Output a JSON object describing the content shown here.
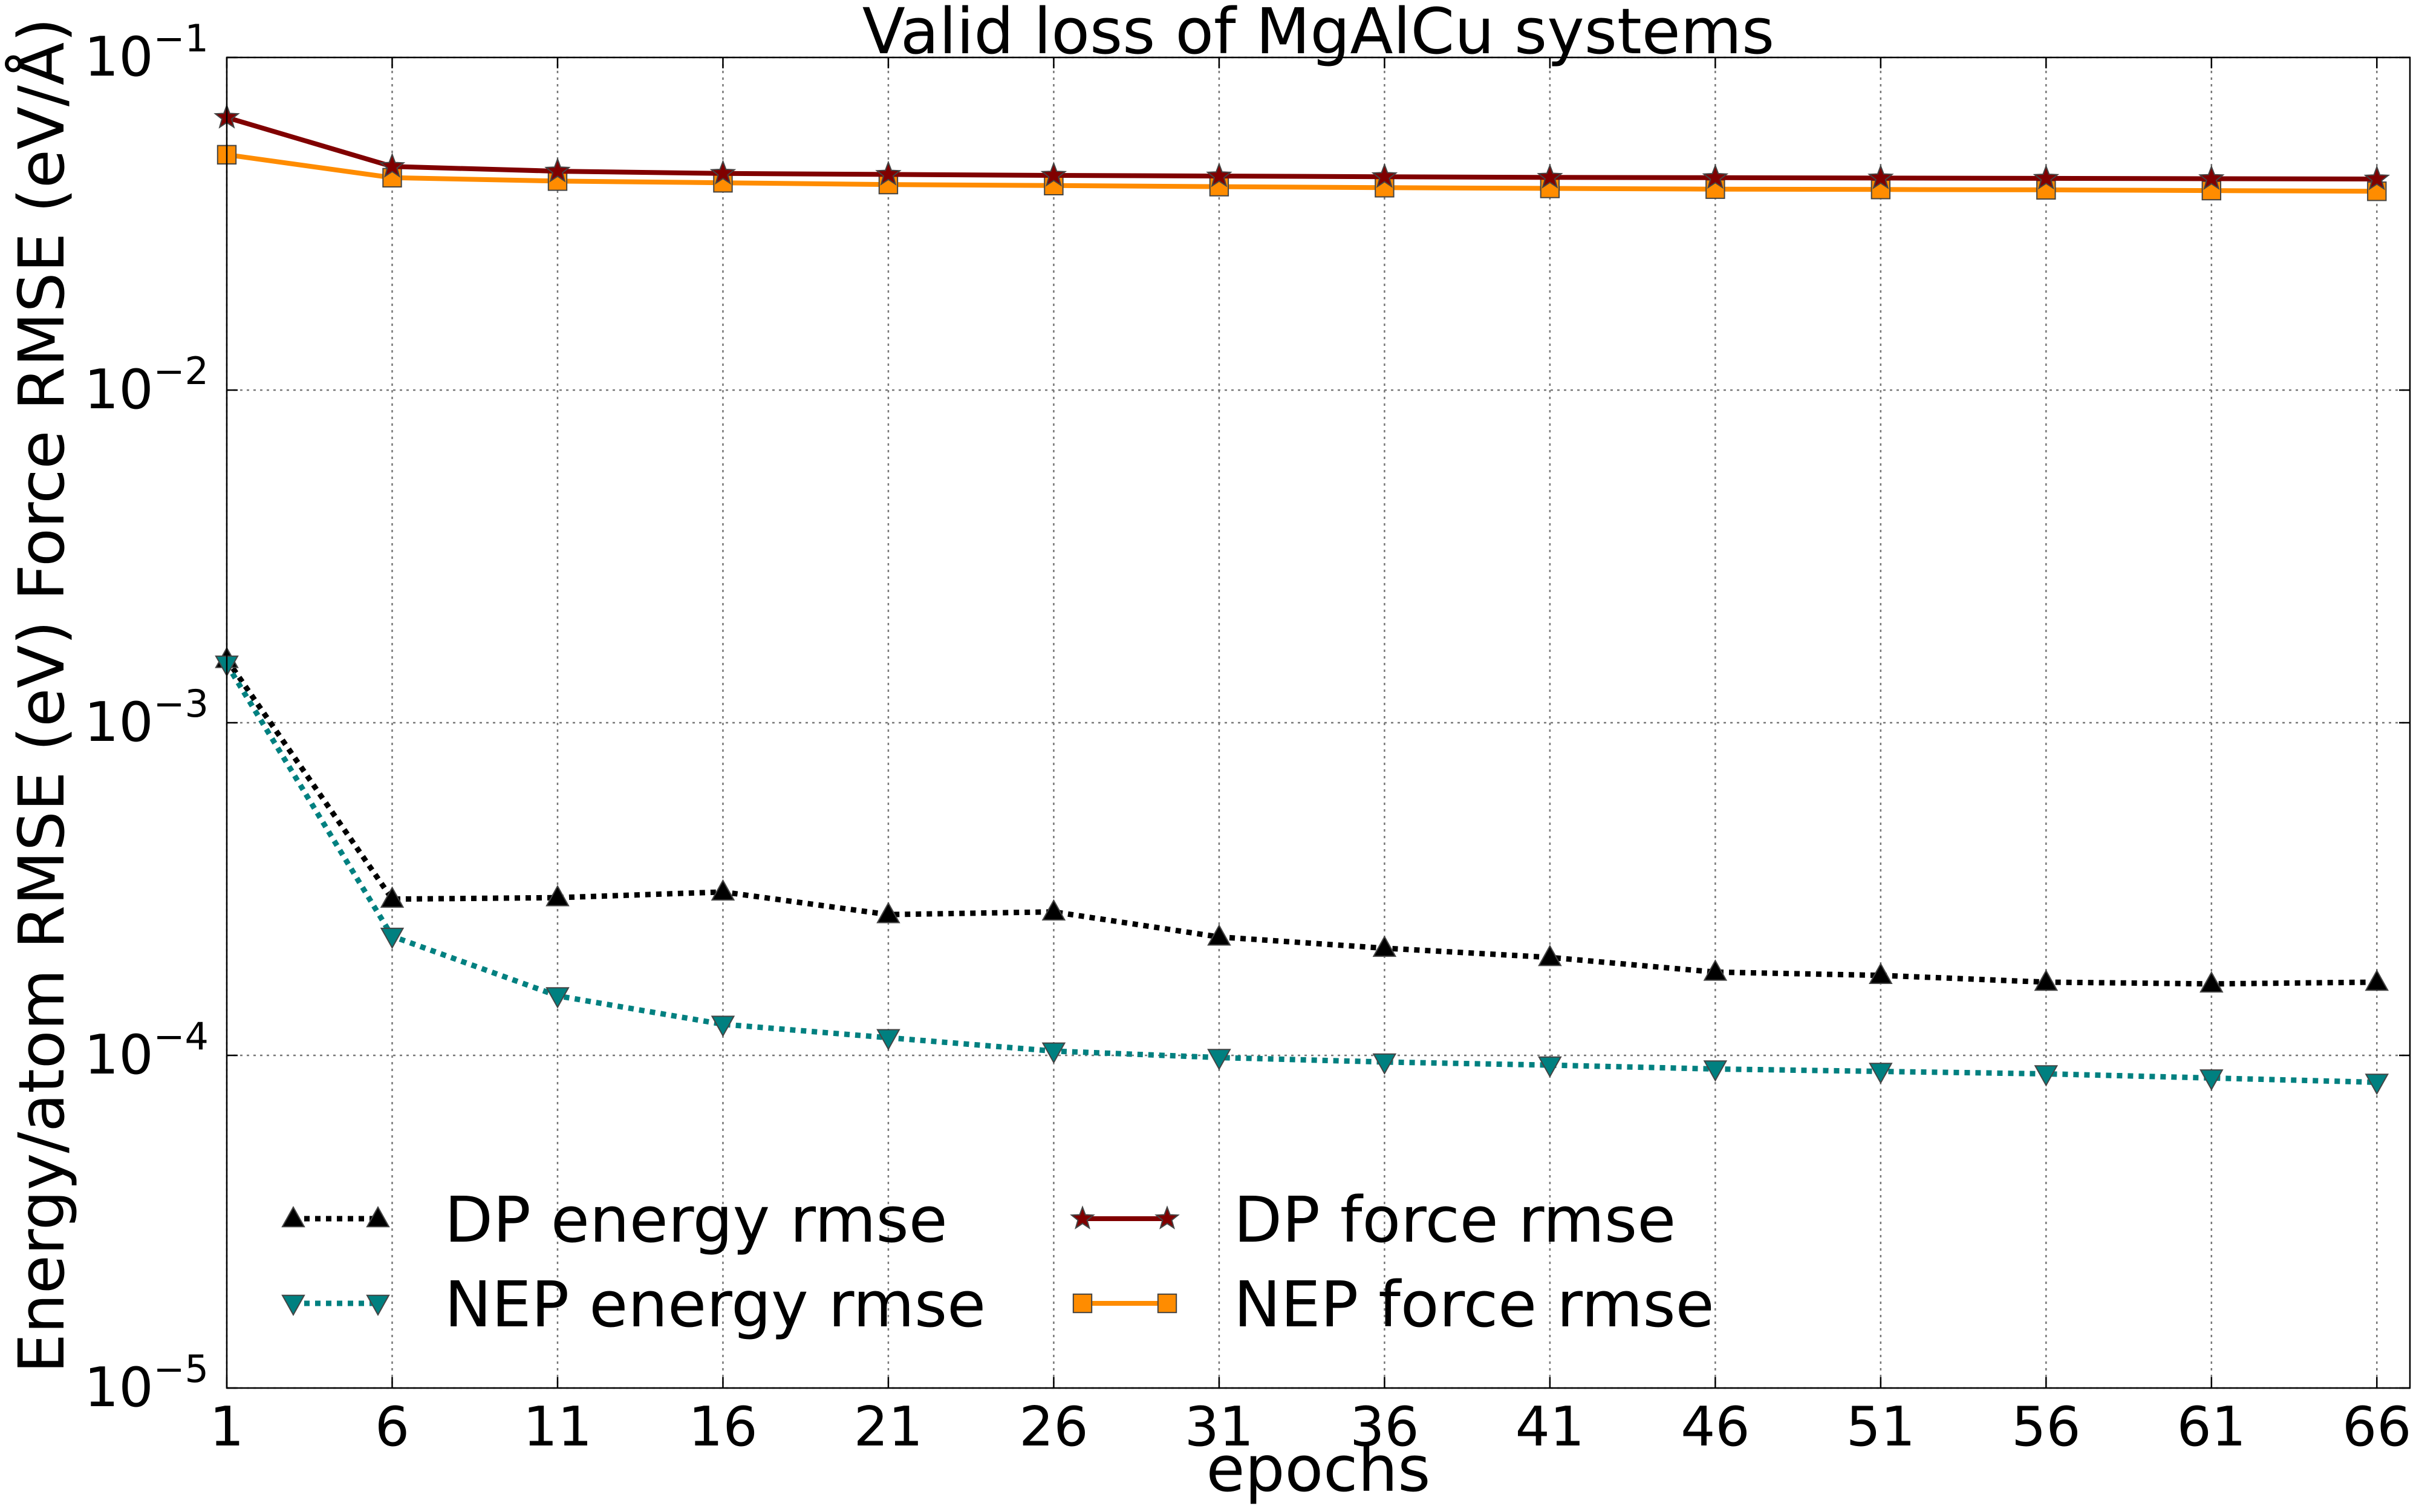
{
  "chart_data": {
    "type": "line",
    "title": "Valid loss of MgAlCu systems",
    "xlabel": "epochs",
    "ylabel": "Energy/atom RMSE (eV)  Force RMSE (eV/Å)",
    "yscale": "log",
    "xlim": [
      1,
      67
    ],
    "ylim": [
      1e-05,
      0.1
    ],
    "grid": true,
    "legend_position": "lower-left",
    "x": [
      1,
      6,
      11,
      16,
      21,
      26,
      31,
      36,
      41,
      46,
      51,
      56,
      61,
      66
    ],
    "x_ticks": [
      1,
      6,
      11,
      16,
      21,
      26,
      31,
      36,
      41,
      46,
      51,
      56,
      61,
      66
    ],
    "y_ticks": [
      {
        "value": 0.1,
        "base": "10",
        "exp": "−1"
      },
      {
        "value": 0.01,
        "base": "10",
        "exp": "−2"
      },
      {
        "value": 0.001,
        "base": "10",
        "exp": "−3"
      },
      {
        "value": 0.0001,
        "base": "10",
        "exp": "−4"
      },
      {
        "value": 1e-05,
        "base": "10",
        "exp": "−5"
      }
    ],
    "series": [
      {
        "name": "DP energy rmse",
        "color": "#000000",
        "style": "dotted",
        "marker": "triangle-up",
        "values": [
          0.00155,
          0.000295,
          0.000298,
          0.00031,
          0.000265,
          0.00027,
          0.000227,
          0.00021,
          0.000197,
          0.000178,
          0.000174,
          0.000166,
          0.000164,
          0.000166
        ]
      },
      {
        "name": "NEP energy rmse",
        "color": "#008080",
        "style": "dotted",
        "marker": "triangle-down",
        "values": [
          0.0015,
          0.000228,
          0.000151,
          0.000124,
          0.000113,
          0.000103,
          9.85e-05,
          9.55e-05,
          9.35e-05,
          9.1e-05,
          8.95e-05,
          8.8e-05,
          8.55e-05,
          8.3e-05
        ]
      },
      {
        "name": "DP force rmse",
        "color": "#800000",
        "style": "solid",
        "marker": "star",
        "values": [
          0.066,
          0.047,
          0.0455,
          0.0448,
          0.0445,
          0.0442,
          0.044,
          0.0438,
          0.0436,
          0.0435,
          0.0434,
          0.0433,
          0.0432,
          0.0431
        ]
      },
      {
        "name": "NEP force rmse",
        "color": "#ff8c00",
        "style": "solid",
        "marker": "square",
        "values": [
          0.051,
          0.0435,
          0.0425,
          0.042,
          0.0415,
          0.0412,
          0.0409,
          0.0406,
          0.0404,
          0.0402,
          0.0401,
          0.04,
          0.0398,
          0.0396
        ]
      }
    ]
  }
}
